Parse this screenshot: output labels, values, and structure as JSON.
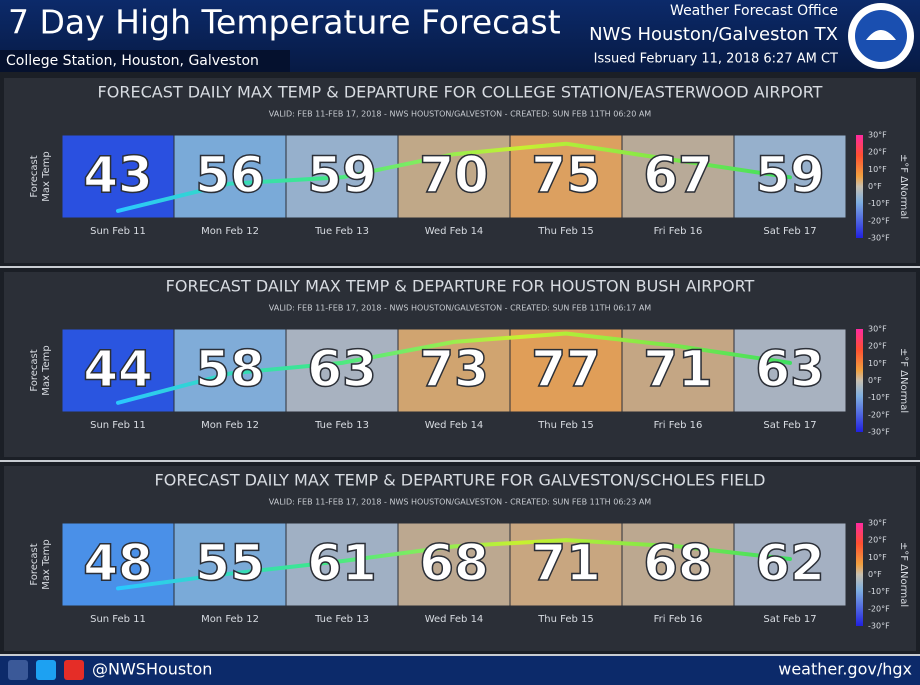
{
  "header": {
    "title": "7 Day High Temperature Forecast",
    "region": "College Station, Houston, Galveston",
    "office": "Weather Forecast Office",
    "office_name": "NWS Houston/Galveston TX",
    "issued": "Issued February 11, 2018 6:27 AM CT"
  },
  "panels": [
    {
      "title": "FORECAST DAILY MAX TEMP & DEPARTURE FOR COLLEGE STATION/EASTERWOOD AIRPORT",
      "valid": "VALID: FEB 11-FEB 17, 2018 - NWS HOUSTON/GALVESTON - CREATED: SUN FEB 11TH 06:20 AM",
      "y_label": [
        "Forecast",
        "Max Temp"
      ],
      "legend_label": "±°F ΔNormal",
      "legend_ticks": [
        "30°F",
        "20°F",
        "10°F",
        "0°F",
        "-10°F",
        "-20°F",
        "-30°F"
      ],
      "days": [
        "Sun Feb 11",
        "Mon Feb 12",
        "Tue Feb 13",
        "Wed Feb 14",
        "Thu Feb 15",
        "Fri Feb 16",
        "Sat Feb 17"
      ],
      "temps": [
        43,
        56,
        59,
        70,
        75,
        67,
        59
      ],
      "colors": [
        "#2a50e0",
        "#7aaad8",
        "#96b0cc",
        "#c0a888",
        "#dca060",
        "#b8aa98",
        "#96b0cc"
      ]
    },
    {
      "title": "FORECAST DAILY MAX TEMP & DEPARTURE FOR HOUSTON BUSH AIRPORT",
      "valid": "VALID: FEB 11-FEB 17, 2018 - NWS HOUSTON/GALVESTON - CREATED: SUN FEB 11TH 06:17 AM",
      "y_label": [
        "Forecast",
        "Max Temp"
      ],
      "legend_label": "±°F ΔNormal",
      "legend_ticks": [
        "30°F",
        "20°F",
        "10°F",
        "0°F",
        "-10°F",
        "-20°F",
        "-30°F"
      ],
      "days": [
        "Sun Feb 11",
        "Mon Feb 12",
        "Tue Feb 13",
        "Wed Feb 14",
        "Thu Feb 15",
        "Fri Feb 16",
        "Sat Feb 17"
      ],
      "temps": [
        44,
        58,
        63,
        73,
        77,
        71,
        63
      ],
      "colors": [
        "#2a55e0",
        "#80acd8",
        "#a8b2c0",
        "#d0a470",
        "#e09e58",
        "#c4a684",
        "#a8b2c0"
      ]
    },
    {
      "title": "FORECAST DAILY MAX TEMP & DEPARTURE FOR GALVESTON/SCHOLES FIELD",
      "valid": "VALID: FEB 11-FEB 17, 2018 - NWS HOUSTON/GALVESTON - CREATED: SUN FEB 11TH 06:23 AM",
      "y_label": [
        "Forecast",
        "Max Temp"
      ],
      "legend_label": "±°F ΔNormal",
      "legend_ticks": [
        "30°F",
        "20°F",
        "10°F",
        "0°F",
        "-10°F",
        "-20°F",
        "-30°F"
      ],
      "days": [
        "Sun Feb 11",
        "Mon Feb 12",
        "Tue Feb 13",
        "Wed Feb 14",
        "Thu Feb 15",
        "Fri Feb 16",
        "Sat Feb 17"
      ],
      "temps": [
        48,
        55,
        61,
        68,
        71,
        68,
        62
      ],
      "colors": [
        "#4a90e8",
        "#7aaad8",
        "#a0b0c4",
        "#bca890",
        "#c8a680",
        "#bca890",
        "#a4b0c2"
      ]
    }
  ],
  "footer": {
    "handle": "@NWSHouston",
    "url": "weather.gov/hgx"
  }
}
